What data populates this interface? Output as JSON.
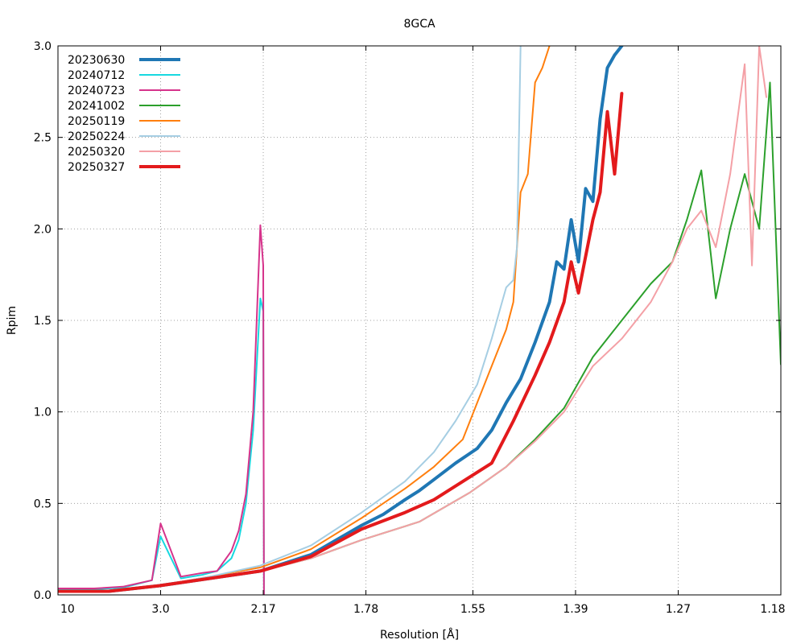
{
  "chart_data": {
    "type": "line",
    "title": "8GCA",
    "xlabel": "Resolution [Å]",
    "ylabel": "Rpim",
    "xlim": [
      0,
      1
    ],
    "ylim": [
      0,
      3.0
    ],
    "grid": true,
    "legend_position": "top-left",
    "x_ticks": [
      {
        "x": 0.0,
        "label": "10"
      },
      {
        "x": 0.142,
        "label": "3.0"
      },
      {
        "x": 0.284,
        "label": "2.17"
      },
      {
        "x": 0.426,
        "label": "1.78"
      },
      {
        "x": 0.574,
        "label": "1.55"
      },
      {
        "x": 0.716,
        "label": "1.39"
      },
      {
        "x": 0.858,
        "label": "1.27"
      },
      {
        "x": 1.0,
        "label": "1.18"
      }
    ],
    "y_ticks": [
      {
        "y": 0.0,
        "label": "0.0"
      },
      {
        "y": 0.5,
        "label": "0.5"
      },
      {
        "y": 1.0,
        "label": "1.0"
      },
      {
        "y": 1.5,
        "label": "1.5"
      },
      {
        "y": 2.0,
        "label": "2.0"
      },
      {
        "y": 2.5,
        "label": "2.5"
      },
      {
        "y": 3.0,
        "label": "3.0"
      }
    ],
    "series": [
      {
        "name": "20230630",
        "color": "#1f77b4",
        "width": 4,
        "x": [
          0.0,
          0.07,
          0.14,
          0.21,
          0.28,
          0.35,
          0.42,
          0.45,
          0.48,
          0.5,
          0.52,
          0.55,
          0.58,
          0.6,
          0.62,
          0.64,
          0.66,
          0.68,
          0.69,
          0.7,
          0.71,
          0.72,
          0.73,
          0.74,
          0.75,
          0.76,
          0.77,
          0.78
        ],
        "y": [
          0.02,
          0.02,
          0.05,
          0.09,
          0.13,
          0.22,
          0.38,
          0.44,
          0.52,
          0.57,
          0.63,
          0.72,
          0.8,
          0.9,
          1.05,
          1.18,
          1.38,
          1.6,
          1.82,
          1.78,
          2.05,
          1.82,
          2.22,
          2.15,
          2.6,
          2.88,
          2.95,
          3.0
        ]
      },
      {
        "name": "20240712",
        "color": "#17d8e0",
        "width": 2,
        "x": [
          0.0,
          0.05,
          0.09,
          0.13,
          0.142,
          0.17,
          0.2,
          0.22,
          0.24,
          0.25,
          0.26,
          0.27,
          0.28,
          0.284,
          0.285
        ],
        "y": [
          0.03,
          0.03,
          0.04,
          0.08,
          0.32,
          0.09,
          0.11,
          0.13,
          0.2,
          0.3,
          0.5,
          0.9,
          1.62,
          1.55,
          0.0
        ]
      },
      {
        "name": "20240723",
        "color": "#d6338b",
        "width": 2,
        "x": [
          0.0,
          0.05,
          0.09,
          0.13,
          0.142,
          0.17,
          0.2,
          0.22,
          0.24,
          0.25,
          0.26,
          0.27,
          0.28,
          0.284,
          0.285
        ],
        "y": [
          0.035,
          0.035,
          0.045,
          0.08,
          0.39,
          0.1,
          0.12,
          0.13,
          0.24,
          0.35,
          0.55,
          1.0,
          2.02,
          1.8,
          0.0
        ]
      },
      {
        "name": "20241002",
        "color": "#2ca02c",
        "width": 2,
        "x": [
          0.0,
          0.07,
          0.14,
          0.21,
          0.28,
          0.35,
          0.42,
          0.5,
          0.57,
          0.62,
          0.66,
          0.7,
          0.74,
          0.78,
          0.82,
          0.85,
          0.87,
          0.89,
          0.91,
          0.93,
          0.95,
          0.97,
          0.985,
          1.0
        ],
        "y": [
          0.02,
          0.02,
          0.05,
          0.09,
          0.13,
          0.2,
          0.3,
          0.4,
          0.56,
          0.7,
          0.85,
          1.02,
          1.3,
          1.5,
          1.7,
          1.82,
          2.05,
          2.32,
          1.62,
          2.0,
          2.3,
          2.0,
          2.8,
          1.26
        ]
      },
      {
        "name": "20250119",
        "color": "#ff7f0e",
        "width": 2,
        "x": [
          0.0,
          0.07,
          0.14,
          0.21,
          0.28,
          0.35,
          0.42,
          0.48,
          0.52,
          0.56,
          0.58,
          0.6,
          0.62,
          0.63,
          0.64,
          0.65,
          0.66,
          0.67,
          0.68
        ],
        "y": [
          0.02,
          0.02,
          0.05,
          0.1,
          0.15,
          0.25,
          0.42,
          0.58,
          0.7,
          0.85,
          1.05,
          1.25,
          1.45,
          1.6,
          2.2,
          2.3,
          2.8,
          2.88,
          3.0
        ]
      },
      {
        "name": "20250224",
        "color": "#a6cee3",
        "width": 2,
        "x": [
          0.0,
          0.07,
          0.14,
          0.21,
          0.28,
          0.35,
          0.42,
          0.48,
          0.52,
          0.55,
          0.58,
          0.6,
          0.62,
          0.63,
          0.635,
          0.64
        ],
        "y": [
          0.02,
          0.02,
          0.05,
          0.1,
          0.16,
          0.27,
          0.45,
          0.62,
          0.78,
          0.95,
          1.15,
          1.4,
          1.68,
          1.72,
          1.9,
          3.0
        ]
      },
      {
        "name": "20250320",
        "color": "#f4a0a6",
        "width": 2,
        "x": [
          0.0,
          0.07,
          0.14,
          0.21,
          0.28,
          0.35,
          0.42,
          0.5,
          0.57,
          0.62,
          0.66,
          0.7,
          0.74,
          0.78,
          0.82,
          0.85,
          0.87,
          0.89,
          0.91,
          0.93,
          0.95,
          0.96,
          0.97,
          0.98
        ],
        "y": [
          0.02,
          0.02,
          0.05,
          0.09,
          0.13,
          0.2,
          0.3,
          0.4,
          0.56,
          0.7,
          0.84,
          1.0,
          1.25,
          1.4,
          1.6,
          1.82,
          2.0,
          2.1,
          1.9,
          2.3,
          2.9,
          1.8,
          3.0,
          2.72
        ]
      },
      {
        "name": "20250327",
        "color": "#e31a1c",
        "width": 4,
        "x": [
          0.0,
          0.07,
          0.14,
          0.21,
          0.28,
          0.35,
          0.42,
          0.48,
          0.52,
          0.56,
          0.6,
          0.63,
          0.66,
          0.68,
          0.7,
          0.71,
          0.72,
          0.73,
          0.74,
          0.75,
          0.76,
          0.77,
          0.78
        ],
        "y": [
          0.02,
          0.02,
          0.05,
          0.09,
          0.13,
          0.21,
          0.36,
          0.45,
          0.52,
          0.62,
          0.72,
          0.95,
          1.2,
          1.38,
          1.6,
          1.82,
          1.65,
          1.85,
          2.05,
          2.2,
          2.64,
          2.3,
          2.74
        ]
      }
    ]
  }
}
